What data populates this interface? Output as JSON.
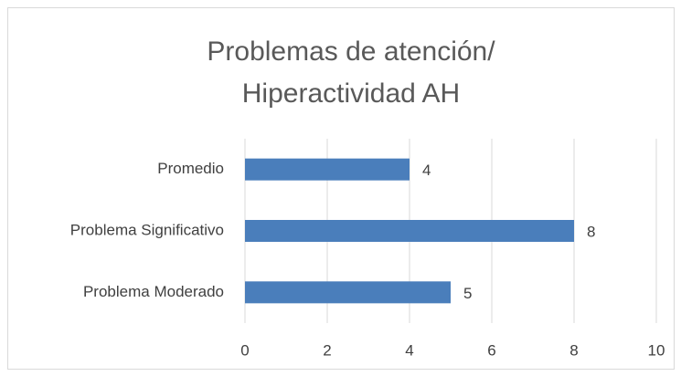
{
  "chart_data": {
    "type": "bar",
    "orientation": "horizontal",
    "title": [
      "Problemas de atención/",
      "Hiperactividad  AH"
    ],
    "categories": [
      "Promedio",
      "Problema Significativo",
      "Problema Moderado"
    ],
    "values": [
      4,
      8,
      5
    ],
    "color": "#4a7ebb",
    "xlim": [
      0,
      10
    ],
    "xticks": [
      0,
      2,
      4,
      6,
      8,
      10
    ],
    "grid": true,
    "data_labels": true
  }
}
